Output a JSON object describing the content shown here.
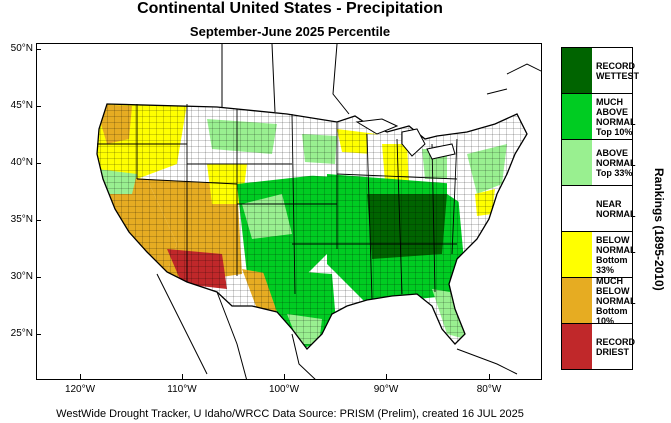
{
  "title": "Continental United States - Precipitation",
  "subtitle": "September-June 2025 Percentile",
  "footer": "WestWide Drought Tracker, U Idaho/WRCC Data Source: PRISM (Prelim), created 16 JUL 2025",
  "ranking_label": "Rankings (1895-2010)",
  "lat_labels": [
    "50°N",
    "45°N",
    "40°N",
    "35°N",
    "30°N",
    "25°N"
  ],
  "lon_labels": [
    "120°W",
    "110°W",
    "100°W",
    "90°W",
    "80°W"
  ],
  "legend": [
    {
      "lines": [
        "RECORD",
        "WETTEST"
      ],
      "color": "#006400"
    },
    {
      "lines": [
        "MUCH",
        "ABOVE",
        "NORMAL",
        "Top 10%"
      ],
      "color": "#00cc22"
    },
    {
      "lines": [
        "ABOVE",
        "NORMAL",
        "Top 33%"
      ],
      "color": "#99f090"
    },
    {
      "lines": [
        "NEAR",
        "NORMAL"
      ],
      "color": "#ffffff"
    },
    {
      "lines": [
        "BELOW",
        "NORMAL",
        "Bottom 33%"
      ],
      "color": "#ffff00"
    },
    {
      "lines": [
        "MUCH",
        "BELOW",
        "NORMAL",
        "Bottom 10%"
      ],
      "color": "#e6ac22"
    },
    {
      "lines": [
        "RECORD",
        "DRIEST"
      ],
      "color": "#c0282a"
    }
  ]
}
